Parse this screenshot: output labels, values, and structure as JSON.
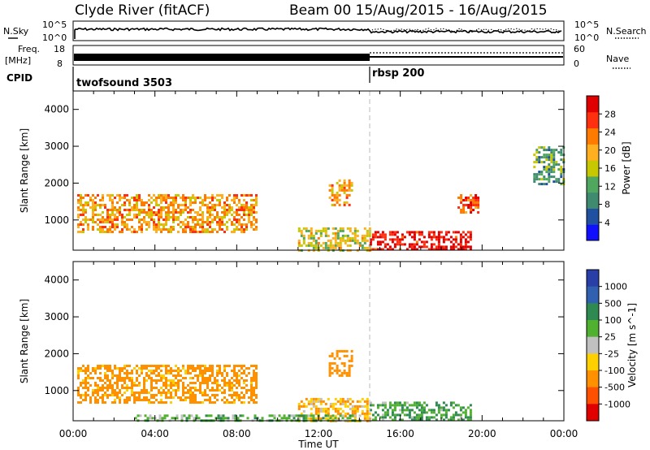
{
  "header": {
    "station": "Clyde River (fitACF)",
    "beam_date": "Beam 00  15/Aug/2015 - 16/Aug/2015"
  },
  "aux_panels": {
    "nsky_label": "N.Sky",
    "nsearch_label": "N.Search",
    "nsky_ticks": [
      "10^5",
      "10^0"
    ],
    "nsky_right_ticks": [
      "10^5",
      "10^0"
    ],
    "freq_label_line1": "Freq.",
    "freq_label_line2": "[MHz]",
    "freq_ticks": [
      "18",
      "8"
    ],
    "nave_label": "Nave",
    "nave_ticks": [
      "60",
      "0"
    ],
    "cpid_label": "CPID",
    "cpid_segments": [
      {
        "name": "twofsound 3503",
        "start_hour": 0,
        "end_hour": 14.5
      },
      {
        "name": "rbsp 200",
        "start_hour": 14.5,
        "end_hour": 24
      }
    ]
  },
  "colors": {
    "power_scale": [
      "#1010ff",
      "#2050a0",
      "#408a70",
      "#50a860",
      "#c8c800",
      "#ffb020",
      "#ff7a00",
      "#ff3010",
      "#e00000"
    ],
    "velocity_scale": [
      "#2a3ea8",
      "#3060b0",
      "#2e8a50",
      "#50b030",
      "#c0c0c0",
      "#ffd000",
      "#ff9000",
      "#ff5000",
      "#e00000"
    ]
  },
  "chart_data": [
    {
      "type": "heatmap",
      "name": "power",
      "title": "",
      "xlabel": "Time UT",
      "ylabel": "Slant Range [km]",
      "xlim": [
        0,
        24
      ],
      "ylim": [
        180,
        4500
      ],
      "x_ticks": [
        "00:00",
        "04:00",
        "08:00",
        "12:00",
        "16:00",
        "20:00",
        "00:00"
      ],
      "y_ticks": [
        "1000",
        "2000",
        "3000",
        "4000"
      ],
      "colorbar_label": "Power [dB]",
      "colorbar_ticks": [
        "4",
        "8",
        "12",
        "16",
        "20",
        "24",
        "28"
      ],
      "colorbar_range": [
        0,
        30
      ],
      "features": [
        {
          "t0": 0.2,
          "t1": 9.0,
          "r0": 700,
          "r1": 1700,
          "level": 20
        },
        {
          "t0": 11.0,
          "t1": 14.5,
          "r0": 200,
          "r1": 800,
          "level": 16
        },
        {
          "t0": 14.5,
          "t1": 19.5,
          "r0": 200,
          "r1": 700,
          "level": 28
        },
        {
          "t0": 12.5,
          "t1": 13.6,
          "r0": 1400,
          "r1": 2100,
          "level": 20
        },
        {
          "t0": 18.8,
          "t1": 19.8,
          "r0": 1200,
          "r1": 1700,
          "level": 24
        },
        {
          "t0": 22.5,
          "t1": 24.0,
          "r0": 2000,
          "r1": 3000,
          "level": 10
        }
      ]
    },
    {
      "type": "heatmap",
      "name": "velocity",
      "title": "",
      "xlabel": "Time UT",
      "ylabel": "Slant Range [km]",
      "xlim": [
        0,
        24
      ],
      "ylim": [
        180,
        4500
      ],
      "x_ticks": [
        "00:00",
        "04:00",
        "08:00",
        "12:00",
        "16:00",
        "20:00",
        "00:00"
      ],
      "y_ticks": [
        "1000",
        "2000",
        "3000",
        "4000"
      ],
      "colorbar_label": "Velocity [m s^-1]",
      "colorbar_ticks": [
        "1000",
        "500",
        "100",
        "25",
        "-25",
        "-100",
        "-500",
        "-1000"
      ],
      "features": [
        {
          "t0": 0.2,
          "t1": 9.0,
          "r0": 700,
          "r1": 1700,
          "velocity": -150
        },
        {
          "t0": 11.0,
          "t1": 14.5,
          "r0": 200,
          "r1": 800,
          "velocity": -80
        },
        {
          "t0": 14.5,
          "t1": 19.5,
          "r0": 200,
          "r1": 700,
          "velocity": 90
        },
        {
          "t0": 3.0,
          "t1": 14.0,
          "r0": 180,
          "r1": 350,
          "velocity": 60
        },
        {
          "t0": 12.5,
          "t1": 13.6,
          "r0": 1400,
          "r1": 2100,
          "velocity": -200
        }
      ]
    }
  ]
}
